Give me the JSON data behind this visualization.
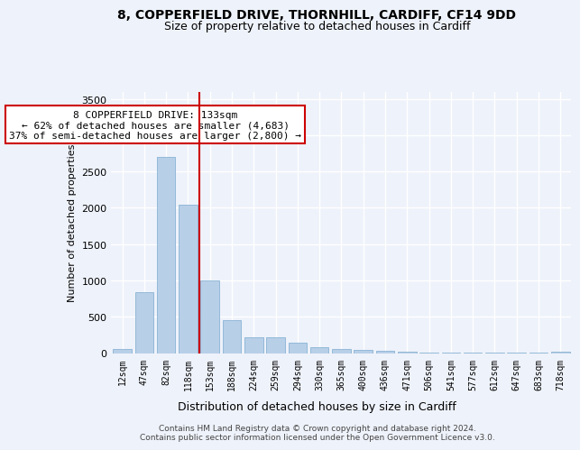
{
  "title_line1": "8, COPPERFIELD DRIVE, THORNHILL, CARDIFF, CF14 9DD",
  "title_line2": "Size of property relative to detached houses in Cardiff",
  "xlabel": "Distribution of detached houses by size in Cardiff",
  "ylabel": "Number of detached properties",
  "categories": [
    "12sqm",
    "47sqm",
    "82sqm",
    "118sqm",
    "153sqm",
    "188sqm",
    "224sqm",
    "259sqm",
    "294sqm",
    "330sqm",
    "365sqm",
    "400sqm",
    "436sqm",
    "471sqm",
    "506sqm",
    "541sqm",
    "577sqm",
    "612sqm",
    "647sqm",
    "683sqm",
    "718sqm"
  ],
  "values": [
    55,
    840,
    2700,
    2045,
    1005,
    450,
    215,
    215,
    140,
    80,
    50,
    45,
    30,
    15,
    10,
    5,
    5,
    5,
    5,
    5,
    20
  ],
  "bar_color": "#b8cfe8",
  "bar_edge_color": "#7aaad0",
  "vline_x_index": 3,
  "vline_color": "#cc0000",
  "annotation_text": "8 COPPERFIELD DRIVE: 133sqm\n← 62% of detached houses are smaller (4,683)\n37% of semi-detached houses are larger (2,800) →",
  "annotation_box_color": "#ffffff",
  "annotation_box_edge_color": "#cc0000",
  "ylim": [
    0,
    3600
  ],
  "yticks": [
    0,
    500,
    1000,
    1500,
    2000,
    2500,
    3000,
    3500
  ],
  "footer_text": "Contains HM Land Registry data © Crown copyright and database right 2024.\nContains public sector information licensed under the Open Government Licence v3.0.",
  "background_color": "#eef2fa",
  "grid_color": "#ffffff",
  "title1_fontsize": 10,
  "title2_fontsize": 9
}
